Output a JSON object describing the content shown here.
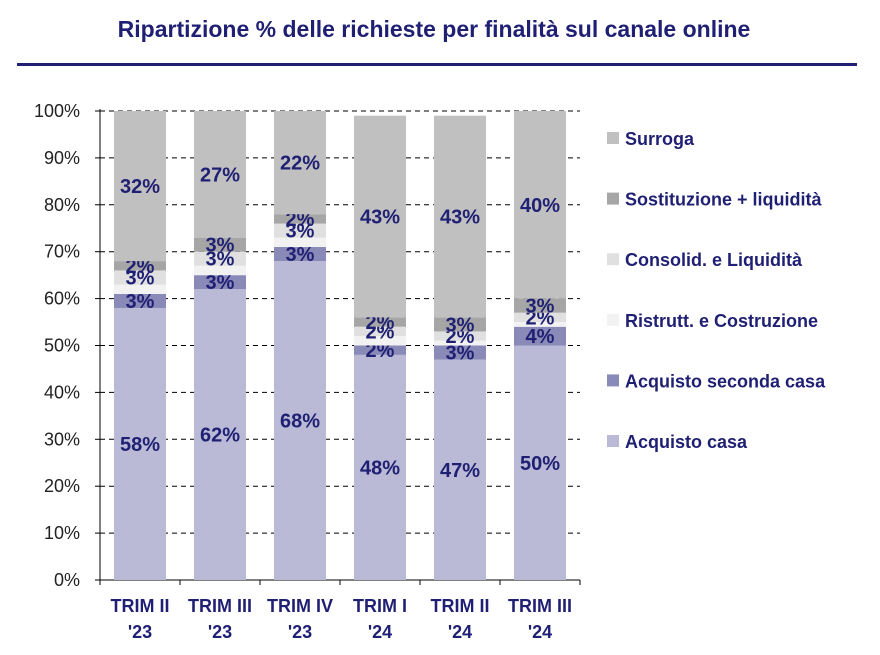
{
  "title": "Ripartizione % delle richieste per finalità sul canale online",
  "chart_data": {
    "type": "bar",
    "stacked": true,
    "categories": [
      [
        "TRIM II",
        "'23"
      ],
      [
        "TRIM III",
        "'23"
      ],
      [
        "TRIM IV",
        "'23"
      ],
      [
        "TRIM I",
        "'24"
      ],
      [
        "TRIM II",
        "'24"
      ],
      [
        "TRIM III",
        "'24"
      ]
    ],
    "ylim": [
      0,
      100
    ],
    "yticks": [
      "0%",
      "10%",
      "20%",
      "30%",
      "40%",
      "50%",
      "60%",
      "70%",
      "80%",
      "90%",
      "100%"
    ],
    "grid": true,
    "legend_position": "right",
    "series": [
      {
        "name": "Acquisto casa",
        "color": "#babad6",
        "values": [
          58,
          62,
          68,
          48,
          47,
          50
        ],
        "labels": [
          "58%",
          "62%",
          "68%",
          "48%",
          "47%",
          "50%"
        ]
      },
      {
        "name": "Acquisto seconda casa",
        "color": "#8a8ab8",
        "values": [
          3,
          3,
          3,
          2,
          3,
          4
        ],
        "labels": [
          "3%",
          "3%",
          "3%",
          "2%",
          "3%",
          "4%"
        ]
      },
      {
        "name": "Ristrutt. e Costruzione",
        "color": "#f2f2f2",
        "values": [
          2,
          2,
          2,
          2,
          1,
          1
        ],
        "labels": [
          "",
          "",
          "",
          "",
          "",
          ""
        ]
      },
      {
        "name": "Consolid. e Liquidità",
        "color": "#e0e0e0",
        "values": [
          3,
          3,
          3,
          2,
          2,
          2
        ],
        "labels": [
          "3%",
          "3%",
          "3%",
          "2%",
          "2%",
          "2%"
        ]
      },
      {
        "name": "Sostituzione + liquidità",
        "color": "#a6a6a6",
        "values": [
          2,
          3,
          2,
          2,
          3,
          3
        ],
        "labels": [
          "2%",
          "3%",
          "2%",
          "2%",
          "3%",
          "3%"
        ]
      },
      {
        "name": "Surroga",
        "color": "#c0c0c0",
        "values": [
          32,
          27,
          22,
          43,
          43,
          40
        ],
        "labels": [
          "32%",
          "27%",
          "22%",
          "43%",
          "43%",
          "40%"
        ]
      }
    ]
  }
}
